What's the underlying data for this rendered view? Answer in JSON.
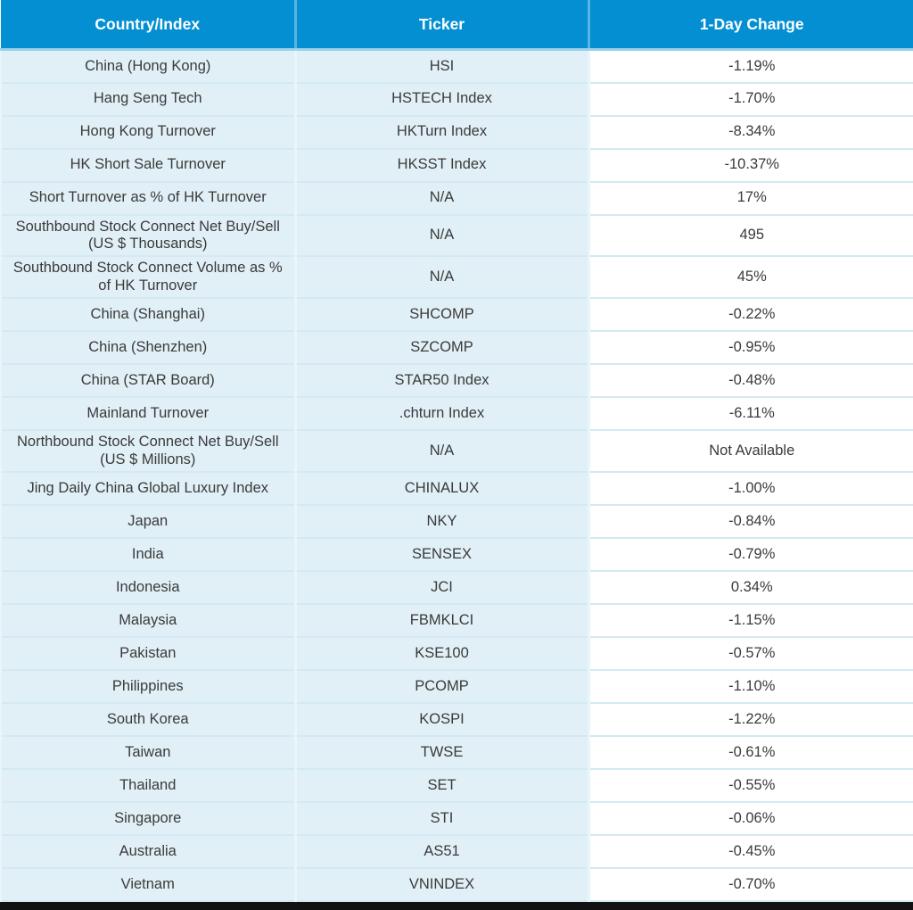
{
  "chart_data": {
    "type": "table",
    "columns": [
      "Country/Index",
      "Ticker",
      "1-Day Change"
    ],
    "rows": [
      {
        "country": "China (Hong Kong)",
        "ticker": "HSI",
        "change": "-1.19%"
      },
      {
        "country": "Hang Seng Tech",
        "ticker": "HSTECH Index",
        "change": "-1.70%"
      },
      {
        "country": "Hong Kong Turnover",
        "ticker": "HKTurn Index",
        "change": "-8.34%"
      },
      {
        "country": "HK Short Sale Turnover",
        "ticker": "HKSST Index",
        "change": "-10.37%"
      },
      {
        "country": "Short Turnover as % of HK Turnover",
        "ticker": "N/A",
        "change": "17%"
      },
      {
        "country": "Southbound Stock Connect Net Buy/Sell (US $ Thousands)",
        "ticker": "N/A",
        "change": "495"
      },
      {
        "country": "Southbound Stock Connect Volume as % of HK Turnover",
        "ticker": "N/A",
        "change": "45%"
      },
      {
        "country": "China (Shanghai)",
        "ticker": "SHCOMP",
        "change": "-0.22%"
      },
      {
        "country": "China (Shenzhen)",
        "ticker": "SZCOMP",
        "change": "-0.95%"
      },
      {
        "country": "China (STAR Board)",
        "ticker": "STAR50 Index",
        "change": "-0.48%"
      },
      {
        "country": "Mainland Turnover",
        "ticker": ".chturn Index",
        "change": "-6.11%"
      },
      {
        "country": "Northbound Stock Connect Net Buy/Sell (US $ Millions)",
        "ticker": "N/A",
        "change": "Not Available"
      },
      {
        "country": "Jing Daily China Global Luxury Index",
        "ticker": "CHINALUX",
        "change": "-1.00%"
      },
      {
        "country": "Japan",
        "ticker": "NKY",
        "change": "-0.84%"
      },
      {
        "country": "India",
        "ticker": "SENSEX",
        "change": "-0.79%"
      },
      {
        "country": "Indonesia",
        "ticker": "JCI",
        "change": "0.34%"
      },
      {
        "country": "Malaysia",
        "ticker": "FBMKLCI",
        "change": "-1.15%"
      },
      {
        "country": "Pakistan",
        "ticker": "KSE100",
        "change": "-0.57%"
      },
      {
        "country": "Philippines",
        "ticker": "PCOMP",
        "change": "-1.10%"
      },
      {
        "country": "South Korea",
        "ticker": "KOSPI",
        "change": "-1.22%"
      },
      {
        "country": "Taiwan",
        "ticker": "TWSE",
        "change": "-0.61%"
      },
      {
        "country": "Thailand",
        "ticker": "SET",
        "change": "-0.55%"
      },
      {
        "country": "Singapore",
        "ticker": "STI",
        "change": "-0.06%"
      },
      {
        "country": "Australia",
        "ticker": "AS51",
        "change": "-0.45%"
      },
      {
        "country": "Vietnam",
        "ticker": "VNINDEX",
        "change": "-0.70%"
      }
    ],
    "layout": {
      "header_position": "top",
      "grid": "horizontal-separators",
      "column_alignment": [
        "center",
        "center",
        "center"
      ]
    }
  },
  "colors": {
    "header_bg": "#048fd2",
    "header_text": "#ffffff",
    "header_divider": "#58b4e0",
    "header_underline": "#9bd1ec",
    "row_blue": "#e1f0f7",
    "row_white": "#ffffff",
    "divider": "#d3e9f3",
    "body_divider": "#e9f5fb",
    "body_text": "#3a3a3a",
    "bottom_bar": "#121212"
  }
}
